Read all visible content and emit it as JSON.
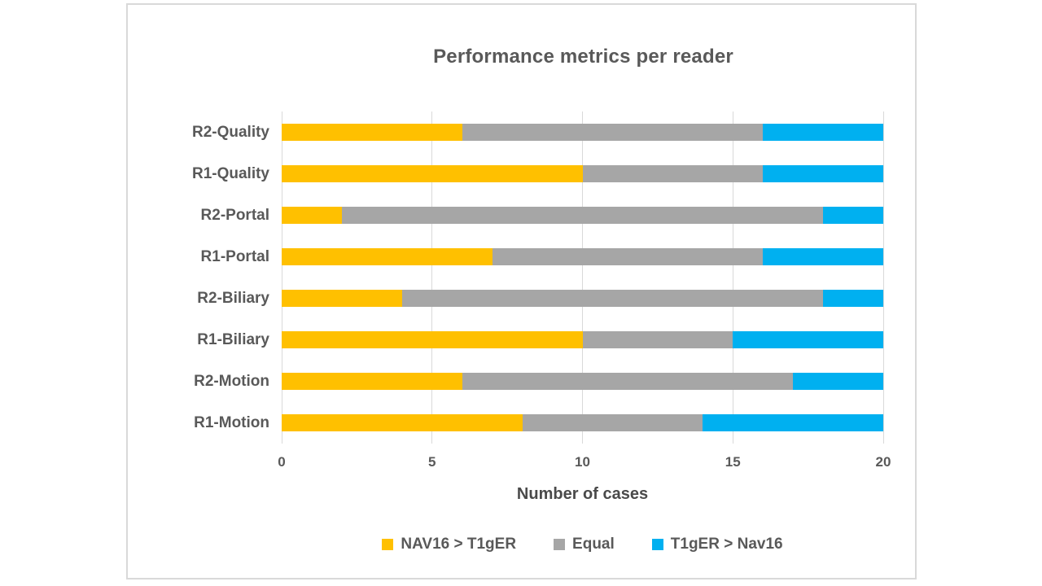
{
  "chart_data": {
    "type": "bar",
    "orientation": "horizontal",
    "stacked": true,
    "title": "Performance metrics per reader",
    "xlabel": "Number of cases",
    "ylabel": "",
    "categories": [
      "R2-Quality",
      "R1-Quality",
      "R2-Portal",
      "R1-Portal",
      "R2-Biliary",
      "R1-Biliary",
      "R2-Motion",
      "R1-Motion"
    ],
    "series": [
      {
        "name": "NAV16 > T1gER",
        "color": "#FFC000",
        "values": [
          6,
          10,
          2,
          7,
          4,
          10,
          6,
          8
        ]
      },
      {
        "name": "Equal",
        "color": "#A6A6A6",
        "values": [
          10,
          6,
          16,
          9,
          14,
          5,
          11,
          6
        ]
      },
      {
        "name": "T1gER > Nav16",
        "color": "#00B0F0",
        "values": [
          4,
          4,
          2,
          4,
          2,
          5,
          3,
          6
        ]
      }
    ],
    "xlim": [
      0,
      20
    ],
    "xticks": [
      0,
      5,
      10,
      15,
      20
    ],
    "grid": "vertical",
    "legend_position": "bottom"
  },
  "styles": {
    "text_color": "#595959",
    "gridline_color": "#D9D9D9",
    "card_border_color": "#D9D9D9",
    "background": "#FFFFFF"
  }
}
